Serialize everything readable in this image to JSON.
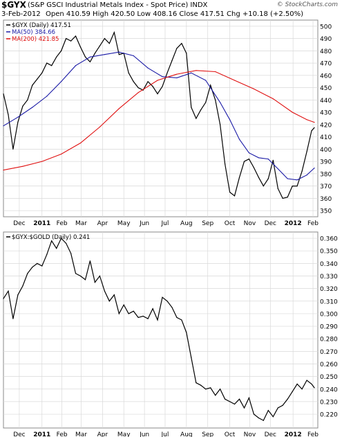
{
  "header": {
    "symbol": "$GYX",
    "description": "(S&P GSCI Industrial Metals Index - Spot Price)  INDX",
    "date": "3-Feb-2012",
    "ohlc": "Open 410.59  High 420.50  Low 408.16  Close 417.51  Chg +10.18 (+2.50%)",
    "brand": "© StockCharts.com"
  },
  "colors": {
    "price": "#000000",
    "ma50": "#1a1aa6",
    "ma200": "#e01010",
    "ratio": "#000000",
    "grid": "#d9d9d9"
  },
  "chart_data": [
    {
      "type": "line",
      "legend": [
        {
          "label": "$GYX (Daily) 417.51",
          "color": "#000000"
        },
        {
          "label": "MA(50) 384.66",
          "color": "#1a1aa6"
        },
        {
          "label": "MA(200) 421.85",
          "color": "#e01010"
        }
      ],
      "legend_placement": "top-left",
      "x_tick_labels": [
        "Dec",
        "2011",
        "Feb",
        "Mar",
        "Apr",
        "May",
        "Jun",
        "Jul",
        "Aug",
        "Sep",
        "Oct",
        "Nov",
        "Dec",
        "2012",
        "Feb"
      ],
      "x_ticks": [
        "2010-12-01",
        "2011-01-03",
        "2011-02-01",
        "2011-03-01",
        "2011-04-01",
        "2011-05-02",
        "2011-06-01",
        "2011-07-01",
        "2011-08-01",
        "2011-09-01",
        "2011-10-03",
        "2011-11-01",
        "2011-12-01",
        "2012-01-03",
        "2012-02-01"
      ],
      "xlim": [
        "2010-11-08",
        "2012-02-08"
      ],
      "ylim": [
        345,
        505
      ],
      "y_ticks": [
        350,
        360,
        370,
        380,
        390,
        400,
        410,
        420,
        430,
        440,
        450,
        460,
        470,
        480,
        490,
        500
      ],
      "grid": true,
      "series": [
        {
          "name": "$GYX",
          "x": [
            "2010-11-08",
            "2010-11-15",
            "2010-11-22",
            "2010-11-29",
            "2010-12-06",
            "2010-12-13",
            "2010-12-20",
            "2010-12-27",
            "2011-01-03",
            "2011-01-10",
            "2011-01-17",
            "2011-01-24",
            "2011-01-31",
            "2011-02-07",
            "2011-02-14",
            "2011-02-21",
            "2011-02-28",
            "2011-03-07",
            "2011-03-14",
            "2011-03-21",
            "2011-03-28",
            "2011-04-04",
            "2011-04-11",
            "2011-04-18",
            "2011-04-25",
            "2011-05-02",
            "2011-05-09",
            "2011-05-16",
            "2011-05-23",
            "2011-05-30",
            "2011-06-06",
            "2011-06-13",
            "2011-06-20",
            "2011-06-27",
            "2011-07-04",
            "2011-07-11",
            "2011-07-18",
            "2011-07-25",
            "2011-08-01",
            "2011-08-08",
            "2011-08-15",
            "2011-08-22",
            "2011-08-29",
            "2011-09-05",
            "2011-09-12",
            "2011-09-19",
            "2011-09-26",
            "2011-10-03",
            "2011-10-10",
            "2011-10-17",
            "2011-10-24",
            "2011-10-31",
            "2011-11-07",
            "2011-11-14",
            "2011-11-21",
            "2011-11-28",
            "2011-12-05",
            "2011-12-12",
            "2011-12-19",
            "2011-12-26",
            "2012-01-02",
            "2012-01-09",
            "2012-01-16",
            "2012-01-23",
            "2012-01-30",
            "2012-02-03"
          ],
          "values": [
            445,
            428,
            400,
            422,
            435,
            440,
            452,
            457,
            462,
            470,
            468,
            475,
            480,
            490,
            488,
            492,
            483,
            475,
            471,
            478,
            484,
            490,
            486,
            495,
            477,
            478,
            462,
            455,
            450,
            448,
            455,
            451,
            445,
            451,
            462,
            472,
            482,
            486,
            478,
            434,
            425,
            432,
            438,
            452,
            440,
            420,
            388,
            365,
            362,
            377,
            390,
            392,
            385,
            377,
            370,
            376,
            391,
            368,
            360,
            361,
            370,
            370,
            382,
            398,
            415,
            417.51
          ]
        },
        {
          "name": "MA(50)",
          "x": [
            "2010-11-08",
            "2010-11-29",
            "2010-12-20",
            "2011-01-10",
            "2011-01-31",
            "2011-02-21",
            "2011-03-14",
            "2011-04-04",
            "2011-04-25",
            "2011-05-16",
            "2011-06-06",
            "2011-06-27",
            "2011-07-18",
            "2011-08-08",
            "2011-08-29",
            "2011-09-19",
            "2011-10-03",
            "2011-10-17",
            "2011-10-31",
            "2011-11-14",
            "2011-11-28",
            "2011-12-12",
            "2011-12-26",
            "2012-01-09",
            "2012-01-23",
            "2012-02-03"
          ],
          "values": [
            419,
            426,
            434,
            443,
            455,
            468,
            475,
            477,
            479,
            476,
            466,
            459,
            458,
            462,
            456,
            438,
            424,
            408,
            397,
            393,
            392,
            384,
            376,
            375,
            379,
            384.66
          ]
        },
        {
          "name": "MA(200)",
          "x": [
            "2010-11-08",
            "2010-12-06",
            "2011-01-03",
            "2011-01-31",
            "2011-02-28",
            "2011-03-28",
            "2011-04-25",
            "2011-05-23",
            "2011-06-20",
            "2011-07-18",
            "2011-08-15",
            "2011-09-12",
            "2011-10-10",
            "2011-11-07",
            "2011-12-05",
            "2012-01-02",
            "2012-01-23",
            "2012-02-03"
          ],
          "values": [
            383,
            386,
            390,
            396,
            405,
            418,
            433,
            446,
            456,
            461,
            464,
            463,
            456,
            449,
            441,
            430,
            424,
            421.85
          ]
        }
      ]
    },
    {
      "type": "line",
      "legend": [
        {
          "label": "$GYX:$GOLD (Daily) 0.241",
          "color": "#000000"
        }
      ],
      "legend_placement": "top-left",
      "x_tick_labels": [
        "Dec",
        "2011",
        "Feb",
        "Mar",
        "Apr",
        "May",
        "Jun",
        "Jul",
        "Aug",
        "Sep",
        "Oct",
        "Nov",
        "Dec",
        "2012",
        "Feb"
      ],
      "x_ticks": [
        "2010-12-01",
        "2011-01-03",
        "2011-02-01",
        "2011-03-01",
        "2011-04-01",
        "2011-05-02",
        "2011-06-01",
        "2011-07-01",
        "2011-08-01",
        "2011-09-01",
        "2011-10-03",
        "2011-11-01",
        "2011-12-01",
        "2012-01-03",
        "2012-02-01"
      ],
      "xlim": [
        "2010-11-08",
        "2012-02-08"
      ],
      "ylim": [
        0.209,
        0.365
      ],
      "y_ticks": [
        0.22,
        0.23,
        0.24,
        0.25,
        0.26,
        0.27,
        0.28,
        0.29,
        0.3,
        0.31,
        0.32,
        0.33,
        0.34,
        0.35,
        0.36
      ],
      "grid": true,
      "series": [
        {
          "name": "$GYX:$GOLD",
          "x": [
            "2010-11-08",
            "2010-11-15",
            "2010-11-22",
            "2010-11-29",
            "2010-12-06",
            "2010-12-13",
            "2010-12-20",
            "2010-12-27",
            "2011-01-03",
            "2011-01-10",
            "2011-01-17",
            "2011-01-24",
            "2011-01-31",
            "2011-02-07",
            "2011-02-14",
            "2011-02-21",
            "2011-02-28",
            "2011-03-07",
            "2011-03-14",
            "2011-03-21",
            "2011-03-28",
            "2011-04-04",
            "2011-04-11",
            "2011-04-18",
            "2011-04-25",
            "2011-05-02",
            "2011-05-09",
            "2011-05-16",
            "2011-05-23",
            "2011-05-30",
            "2011-06-06",
            "2011-06-13",
            "2011-06-20",
            "2011-06-27",
            "2011-07-04",
            "2011-07-11",
            "2011-07-18",
            "2011-07-25",
            "2011-08-01",
            "2011-08-08",
            "2011-08-15",
            "2011-08-22",
            "2011-08-29",
            "2011-09-05",
            "2011-09-12",
            "2011-09-19",
            "2011-09-26",
            "2011-10-03",
            "2011-10-10",
            "2011-10-17",
            "2011-10-24",
            "2011-10-31",
            "2011-11-07",
            "2011-11-14",
            "2011-11-21",
            "2011-11-28",
            "2011-12-05",
            "2011-12-12",
            "2011-12-19",
            "2011-12-26",
            "2012-01-02",
            "2012-01-09",
            "2012-01-16",
            "2012-01-23",
            "2012-01-30",
            "2012-02-03"
          ],
          "values": [
            0.312,
            0.318,
            0.296,
            0.315,
            0.322,
            0.332,
            0.337,
            0.34,
            0.338,
            0.347,
            0.358,
            0.352,
            0.36,
            0.356,
            0.348,
            0.332,
            0.33,
            0.327,
            0.342,
            0.325,
            0.33,
            0.318,
            0.31,
            0.315,
            0.3,
            0.307,
            0.3,
            0.302,
            0.297,
            0.298,
            0.296,
            0.304,
            0.295,
            0.313,
            0.31,
            0.305,
            0.297,
            0.295,
            0.285,
            0.265,
            0.245,
            0.243,
            0.24,
            0.241,
            0.235,
            0.24,
            0.232,
            0.23,
            0.228,
            0.232,
            0.225,
            0.233,
            0.22,
            0.217,
            0.215,
            0.223,
            0.218,
            0.225,
            0.227,
            0.232,
            0.238,
            0.244,
            0.24,
            0.247,
            0.244,
            0.241
          ]
        }
      ]
    }
  ]
}
